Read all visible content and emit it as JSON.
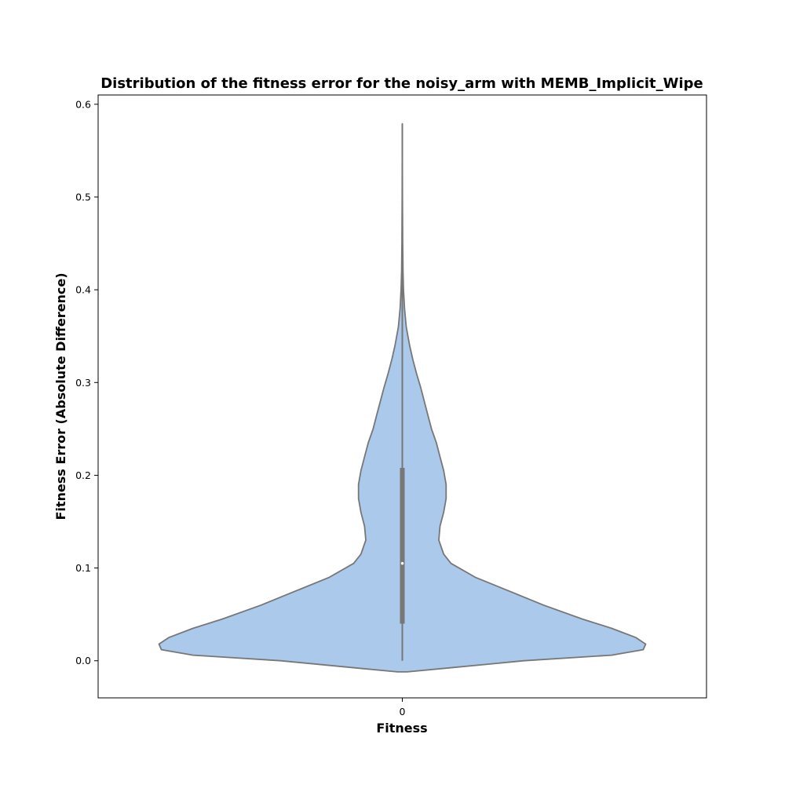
{
  "chart_data": {
    "type": "violin",
    "title": "Distribution of the fitness error for the noisy_arm with MEMB_Implicit_Wipe",
    "xlabel": "Fitness",
    "ylabel": "Fitness Error (Absolute Difference)",
    "categories": [
      "0"
    ],
    "ylim": [
      -0.04,
      0.61
    ],
    "yticks": [
      "0.0",
      "0.1",
      "0.2",
      "0.3",
      "0.4",
      "0.5",
      "0.6"
    ],
    "ytick_values": [
      0.0,
      0.1,
      0.2,
      0.3,
      0.4,
      0.5,
      0.6
    ],
    "grid": false,
    "fill_color": "#abc9eb",
    "edge_color": "#777777",
    "box_color": "#777777",
    "median_color": "#ffffff",
    "kde_profile": {
      "y": [
        -0.012,
        -0.008,
        0.0,
        0.006,
        0.012,
        0.018,
        0.025,
        0.035,
        0.045,
        0.06,
        0.075,
        0.09,
        0.105,
        0.115,
        0.13,
        0.145,
        0.16,
        0.175,
        0.19,
        0.205,
        0.22,
        0.235,
        0.25,
        0.265,
        0.28,
        0.295,
        0.31,
        0.325,
        0.34,
        0.36,
        0.38,
        0.4,
        0.42,
        0.45,
        0.5,
        0.579
      ],
      "density": [
        0.02,
        0.18,
        0.5,
        0.86,
        0.99,
        1.0,
        0.96,
        0.86,
        0.74,
        0.58,
        0.44,
        0.3,
        0.2,
        0.17,
        0.15,
        0.155,
        0.17,
        0.18,
        0.18,
        0.17,
        0.155,
        0.14,
        0.12,
        0.105,
        0.09,
        0.075,
        0.058,
        0.043,
        0.03,
        0.016,
        0.009,
        0.005,
        0.003,
        0.0015,
        0.0008,
        0.0
      ]
    },
    "box": {
      "q1": 0.04,
      "median": 0.105,
      "q3": 0.208,
      "whisker_low": 0.0,
      "whisker_high": 0.579
    }
  }
}
